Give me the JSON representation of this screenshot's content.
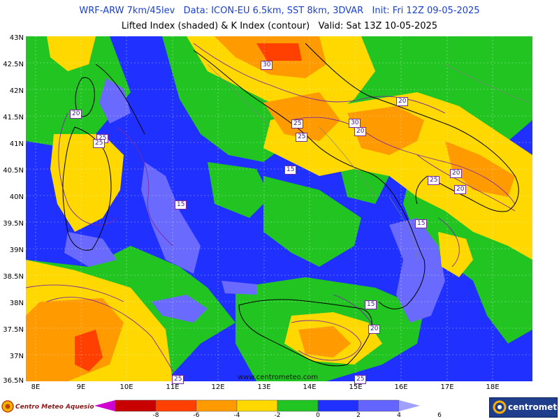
{
  "header": {
    "title_line1": "WRF-ARW 7km/45lev   Data: ICON-EU 6.5km, SST 8km, 3DVAR   Init: Fri 12Z 09-05-2025",
    "title_line2": "Lifted Index (shaded) & K Index (contour)   Valid: Sat 13Z 10-05-2025"
  },
  "axes": {
    "latitude_labels": [
      "43N",
      "42.5N",
      "42N",
      "41.5N",
      "41N",
      "40.5N",
      "40N",
      "39.5N",
      "39N",
      "38.5N",
      "38N",
      "37.5N",
      "37N",
      "36.5N"
    ],
    "longitude_labels": [
      "8E",
      "9E",
      "10E",
      "11E",
      "12E",
      "13E",
      "14E",
      "15E",
      "16E",
      "17E",
      "18E"
    ]
  },
  "contour_labels": [
    "15",
    "15",
    "15",
    "15",
    "20",
    "20",
    "20",
    "20",
    "20",
    "25",
    "25",
    "25",
    "25",
    "25",
    "25",
    "30",
    "30",
    "20",
    "25"
  ],
  "colorbar": {
    "ticks": [
      "-8",
      "-6",
      "-4",
      "-2",
      "0",
      "2",
      "4",
      "6"
    ],
    "colors": [
      "#d000d0",
      "#c80000",
      "#ff4000",
      "#ff9a00",
      "#ffd800",
      "#22c422",
      "#2030ff",
      "#6464ff",
      "#a0a0ff"
    ]
  },
  "watermark": "www.centrometeo.com",
  "logos": {
    "left": "Centro Meteo Aquesio",
    "right": "centrometeo"
  },
  "legend_colors": {
    "sea_stable": "#2030ff",
    "strong_stable": "#6a6aff",
    "neutral_green": "#22c422",
    "weak_unstable": "#ffd800",
    "moderate_unstable": "#ff9a00",
    "strong_unstable": "#ff4000",
    "extreme_unstable": "#c80000"
  }
}
